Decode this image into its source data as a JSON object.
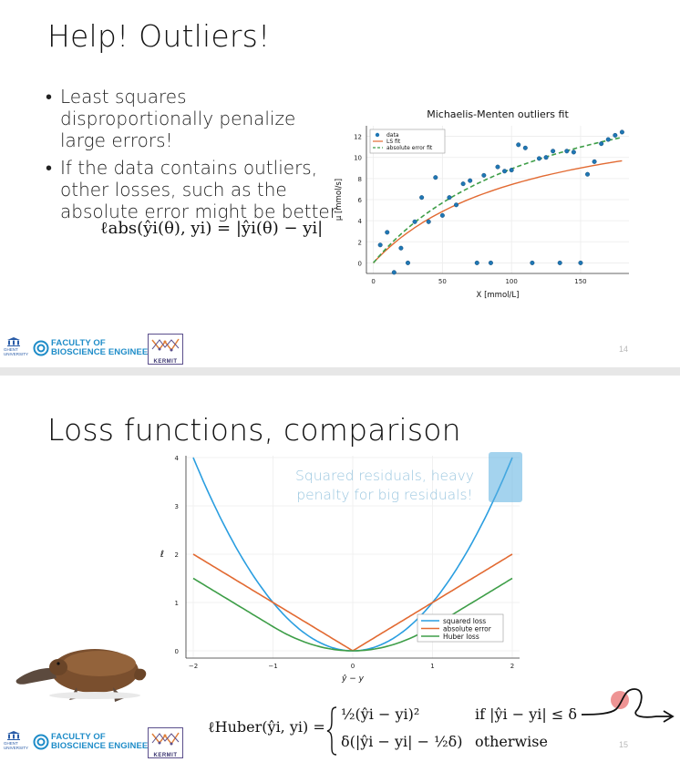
{
  "slide1": {
    "title": "Help! Outliers!",
    "bullets": [
      "Least squares disproportionally penalize large errors!",
      "If the data contains outliers, other losses, such as the absolute error might be better"
    ],
    "formula": "ℓabs(ŷi(θ), yi) = |ŷi(θ) − yi|",
    "page_number": "14",
    "chart_data": {
      "type": "scatter",
      "title": "Michaelis-Menten outliers fit",
      "xlabel": "X [mmol/L]",
      "ylabel": "μ [mmol/s]",
      "xlim": [
        -5,
        185
      ],
      "ylim": [
        -1,
        13
      ],
      "xticks": [
        0,
        50,
        100,
        150
      ],
      "yticks": [
        0,
        2,
        4,
        6,
        8,
        10,
        12
      ],
      "legend": [
        "data",
        "LS fit",
        "absolute error fit"
      ],
      "legend_position": "top-left",
      "grid": true,
      "series": [
        {
          "name": "data",
          "color": "#1f77b4",
          "points": [
            [
              5,
              1.7
            ],
            [
              10,
              2.9
            ],
            [
              15,
              -0.9
            ],
            [
              20,
              1.4
            ],
            [
              25,
              0.0
            ],
            [
              30,
              3.9
            ],
            [
              35,
              6.2
            ],
            [
              40,
              3.9
            ],
            [
              45,
              8.1
            ],
            [
              50,
              4.5
            ],
            [
              55,
              6.2
            ],
            [
              60,
              5.5
            ],
            [
              65,
              7.5
            ],
            [
              70,
              7.8
            ],
            [
              75,
              0.0
            ],
            [
              80,
              8.3
            ],
            [
              85,
              0.0
            ],
            [
              90,
              9.1
            ],
            [
              95,
              8.7
            ],
            [
              100,
              8.8
            ],
            [
              105,
              11.2
            ],
            [
              110,
              10.9
            ],
            [
              115,
              0.0
            ],
            [
              120,
              9.9
            ],
            [
              125,
              10.0
            ],
            [
              130,
              10.6
            ],
            [
              135,
              0.0
            ],
            [
              140,
              10.6
            ],
            [
              145,
              10.5
            ],
            [
              150,
              0.0
            ],
            [
              155,
              8.4
            ],
            [
              160,
              9.6
            ],
            [
              165,
              11.3
            ],
            [
              170,
              11.7
            ],
            [
              175,
              12.1
            ],
            [
              180,
              12.4
            ]
          ]
        },
        {
          "name": "LS fit",
          "color": "#e26a32",
          "kind": "line"
        },
        {
          "name": "absolute error fit",
          "color": "#3e9e48",
          "kind": "dashed"
        }
      ]
    }
  },
  "slide2": {
    "title": "Loss functions, comparison",
    "annotation": "Squared residuals, heavy penalty for big residuals!",
    "formula_lhs": "ℓHuber(ŷi, yi) =",
    "formula_case1": "½(ŷi − yi)²",
    "formula_case1_cond": "if |ŷi − yi| ≤ δ",
    "formula_case2": "δ(|ŷi − yi| − ½δ)",
    "formula_case2_cond": "otherwise",
    "page_number": "15",
    "chart_data": {
      "type": "line",
      "xlabel": "ŷ − y",
      "ylabel": "ℓ",
      "xlim": [
        -2,
        2
      ],
      "ylim": [
        0,
        4
      ],
      "xticks": [
        -2,
        -1,
        0,
        1,
        2
      ],
      "yticks": [
        0,
        1,
        2,
        3,
        4
      ],
      "legend_position": "bottom-right",
      "grid": true,
      "series": [
        {
          "name": "squared loss",
          "color": "#2a9ee0",
          "function": "x^2"
        },
        {
          "name": "absolute error",
          "color": "#e26a32",
          "function": "|x|"
        },
        {
          "name": "Huber loss",
          "color": "#3e9e48",
          "function": "huber delta=1"
        }
      ]
    }
  },
  "footer": {
    "university": "GHENT UNIVERSITY",
    "faculty_line1": "FACULTY OF",
    "faculty_line2": "BIOSCIENCE ENGINEERING",
    "kermit_label": "KERMIT"
  }
}
